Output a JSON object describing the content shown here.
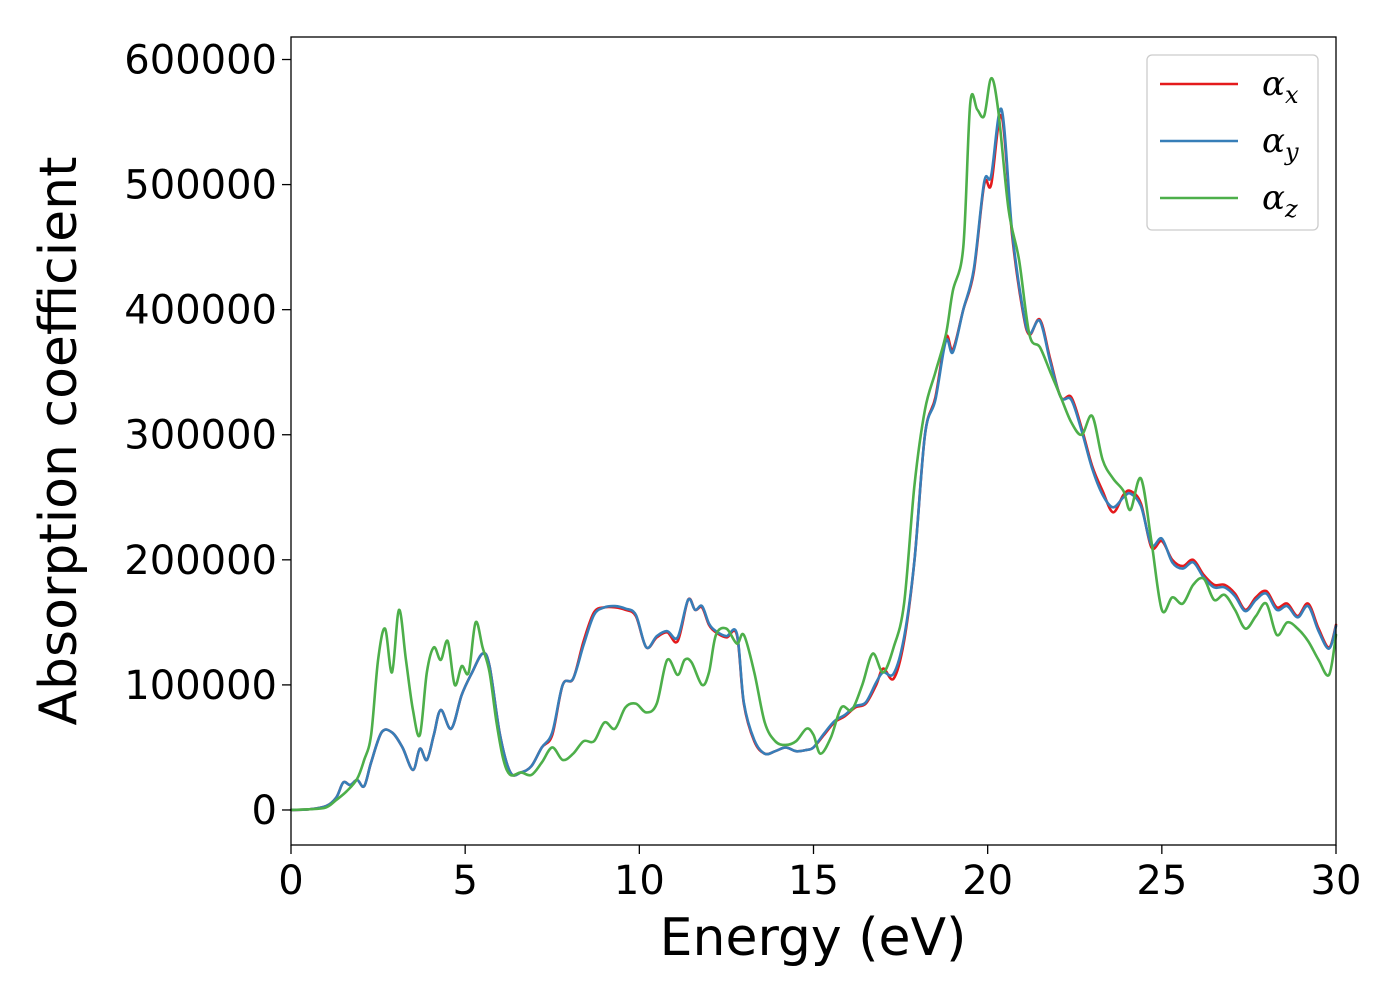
{
  "chart_data": {
    "type": "line",
    "xlabel": "Energy (eV)",
    "ylabel": "Absorption coefficient",
    "xlim": [
      0,
      30
    ],
    "ylim": [
      -28000,
      618000
    ],
    "xticks": [
      0,
      5,
      10,
      15,
      20,
      25,
      30
    ],
    "yticks": [
      0,
      100000,
      200000,
      300000,
      400000,
      500000,
      600000
    ],
    "grid": false,
    "legend_position": "top-right",
    "series": [
      {
        "name": "αx",
        "symbol": "α",
        "sub": "x",
        "color": "#e41a1c",
        "x": [
          0,
          0.5,
          1,
          1.3,
          1.5,
          1.7,
          1.9,
          2.1,
          2.3,
          2.6,
          2.9,
          3.2,
          3.5,
          3.7,
          3.9,
          4.1,
          4.3,
          4.6,
          4.9,
          5.2,
          5.5,
          5.7,
          6,
          6.3,
          6.6,
          6.9,
          7.2,
          7.5,
          7.8,
          8.1,
          8.4,
          8.7,
          9,
          9.3,
          9.6,
          9.9,
          10.2,
          10.5,
          10.8,
          11.1,
          11.4,
          11.6,
          11.8,
          12,
          12.2,
          12.5,
          12.8,
          13,
          13.3,
          13.6,
          13.9,
          14.2,
          14.5,
          14.8,
          15,
          15.3,
          15.6,
          15.9,
          16.2,
          16.5,
          16.8,
          17,
          17.3,
          17.6,
          17.9,
          18.2,
          18.5,
          18.8,
          19,
          19.3,
          19.6,
          19.9,
          20.1,
          20.4,
          20.7,
          21,
          21.2,
          21.5,
          21.8,
          22.1,
          22.4,
          22.7,
          23,
          23.3,
          23.6,
          23.9,
          24.1,
          24.4,
          24.7,
          25,
          25.3,
          25.6,
          25.9,
          26.2,
          26.5,
          26.8,
          27.1,
          27.4,
          27.7,
          28,
          28.3,
          28.6,
          28.9,
          29.2,
          29.5,
          29.8,
          30
        ],
        "values": [
          0,
          500,
          3000,
          10000,
          22000,
          20000,
          24000,
          19000,
          38000,
          62000,
          62000,
          50000,
          32000,
          49000,
          40000,
          60000,
          80000,
          65000,
          92000,
          110000,
          125000,
          115000,
          60000,
          30000,
          30000,
          35000,
          50000,
          60000,
          100000,
          105000,
          135000,
          158000,
          162000,
          162000,
          160000,
          155000,
          130000,
          138000,
          142000,
          135000,
          168000,
          160000,
          162000,
          148000,
          142000,
          138000,
          140000,
          85000,
          55000,
          45000,
          47000,
          50000,
          47000,
          48000,
          50000,
          60000,
          70000,
          75000,
          82000,
          85000,
          100000,
          113000,
          105000,
          135000,
          200000,
          300000,
          330000,
          378000,
          368000,
          400000,
          430000,
          500000,
          500000,
          555000,
          460000,
          400000,
          380000,
          392000,
          360000,
          330000,
          330000,
          305000,
          275000,
          255000,
          238000,
          252000,
          255000,
          245000,
          210000,
          215000,
          200000,
          195000,
          200000,
          188000,
          180000,
          180000,
          173000,
          160000,
          170000,
          175000,
          162000,
          165000,
          155000,
          165000,
          145000,
          130000,
          148000
        ]
      },
      {
        "name": "αy",
        "symbol": "α",
        "sub": "y",
        "color": "#377eb8",
        "x": [
          0,
          0.5,
          1,
          1.3,
          1.5,
          1.7,
          1.9,
          2.1,
          2.3,
          2.6,
          2.9,
          3.2,
          3.5,
          3.7,
          3.9,
          4.1,
          4.3,
          4.6,
          4.9,
          5.2,
          5.5,
          5.7,
          6,
          6.3,
          6.6,
          6.9,
          7.2,
          7.5,
          7.8,
          8.1,
          8.4,
          8.7,
          9,
          9.3,
          9.6,
          9.9,
          10.2,
          10.5,
          10.8,
          11.1,
          11.4,
          11.6,
          11.8,
          12,
          12.2,
          12.5,
          12.8,
          13,
          13.3,
          13.6,
          13.9,
          14.2,
          14.5,
          14.8,
          15,
          15.3,
          15.6,
          15.9,
          16.2,
          16.5,
          16.8,
          17,
          17.3,
          17.6,
          17.9,
          18.2,
          18.5,
          18.8,
          19,
          19.3,
          19.6,
          19.9,
          20.1,
          20.4,
          20.7,
          21,
          21.2,
          21.5,
          21.8,
          22.1,
          22.4,
          22.7,
          23,
          23.3,
          23.6,
          23.9,
          24.1,
          24.4,
          24.7,
          25,
          25.3,
          25.6,
          25.9,
          26.2,
          26.5,
          26.8,
          27.1,
          27.4,
          27.7,
          28,
          28.3,
          28.6,
          28.9,
          29.2,
          29.5,
          29.8,
          30
        ],
        "values": [
          0,
          500,
          3000,
          10000,
          22000,
          20000,
          24000,
          19000,
          38000,
          62000,
          62000,
          50000,
          32000,
          49000,
          40000,
          60000,
          80000,
          65000,
          92000,
          110000,
          125000,
          115000,
          60000,
          30000,
          30000,
          35000,
          50000,
          62000,
          100000,
          105000,
          132000,
          156000,
          162000,
          163000,
          161000,
          156000,
          130000,
          139000,
          143000,
          138000,
          168000,
          160000,
          163000,
          149000,
          143000,
          139000,
          141000,
          86000,
          56000,
          45000,
          47000,
          50000,
          47000,
          48000,
          50000,
          61000,
          71000,
          76000,
          83000,
          86000,
          102000,
          110000,
          109000,
          138000,
          200000,
          300000,
          328000,
          375000,
          366000,
          400000,
          432000,
          502000,
          507000,
          560000,
          463000,
          402000,
          381000,
          391000,
          358000,
          330000,
          328000,
          303000,
          273000,
          252000,
          242000,
          250000,
          253000,
          243000,
          212000,
          217000,
          198000,
          193000,
          198000,
          186000,
          178000,
          178000,
          171000,
          159000,
          168000,
          173000,
          160000,
          163000,
          154000,
          163000,
          143000,
          129000,
          147000
        ]
      },
      {
        "name": "αz",
        "symbol": "α",
        "sub": "z",
        "color": "#4daf4a",
        "x": [
          0,
          0.5,
          1,
          1.3,
          1.6,
          1.9,
          2.1,
          2.3,
          2.5,
          2.7,
          2.9,
          3.1,
          3.3,
          3.5,
          3.7,
          3.9,
          4.1,
          4.3,
          4.5,
          4.7,
          4.9,
          5.1,
          5.3,
          5.5,
          5.7,
          5.9,
          6.1,
          6.3,
          6.6,
          6.9,
          7.2,
          7.5,
          7.8,
          8.1,
          8.4,
          8.7,
          9,
          9.3,
          9.6,
          9.9,
          10.2,
          10.5,
          10.8,
          11.1,
          11.3,
          11.5,
          11.8,
          12,
          12.2,
          12.5,
          12.8,
          13,
          13.3,
          13.6,
          13.9,
          14.2,
          14.5,
          14.8,
          15,
          15.2,
          15.5,
          15.8,
          16.1,
          16.4,
          16.7,
          17,
          17.3,
          17.6,
          17.9,
          18.2,
          18.5,
          18.8,
          19,
          19.3,
          19.5,
          19.7,
          19.9,
          20.1,
          20.3,
          20.6,
          20.9,
          21.2,
          21.5,
          21.8,
          22.1,
          22.4,
          22.7,
          23,
          23.3,
          23.6,
          23.9,
          24.1,
          24.4,
          24.7,
          25,
          25.3,
          25.6,
          25.9,
          26.2,
          26.5,
          26.8,
          27.1,
          27.4,
          27.7,
          28,
          28.3,
          28.6,
          28.9,
          29.2,
          29.5,
          29.8,
          30
        ],
        "values": [
          0,
          500,
          2000,
          8000,
          15000,
          25000,
          40000,
          60000,
          120000,
          145000,
          110000,
          160000,
          120000,
          80000,
          60000,
          110000,
          130000,
          120000,
          135000,
          100000,
          115000,
          110000,
          150000,
          130000,
          110000,
          70000,
          40000,
          28000,
          30000,
          28000,
          38000,
          50000,
          40000,
          45000,
          55000,
          55000,
          70000,
          65000,
          82000,
          85000,
          78000,
          85000,
          120000,
          108000,
          120000,
          118000,
          100000,
          110000,
          140000,
          145000,
          133000,
          140000,
          110000,
          70000,
          55000,
          52000,
          55000,
          65000,
          60000,
          45000,
          58000,
          82000,
          80000,
          100000,
          125000,
          110000,
          130000,
          165000,
          260000,
          320000,
          350000,
          380000,
          415000,
          450000,
          565000,
          560000,
          555000,
          585000,
          560000,
          480000,
          440000,
          380000,
          370000,
          350000,
          330000,
          310000,
          300000,
          315000,
          280000,
          265000,
          255000,
          240000,
          265000,
          215000,
          160000,
          170000,
          165000,
          180000,
          185000,
          168000,
          172000,
          160000,
          145000,
          155000,
          165000,
          140000,
          150000,
          145000,
          135000,
          120000,
          108000,
          140000
        ]
      }
    ]
  }
}
